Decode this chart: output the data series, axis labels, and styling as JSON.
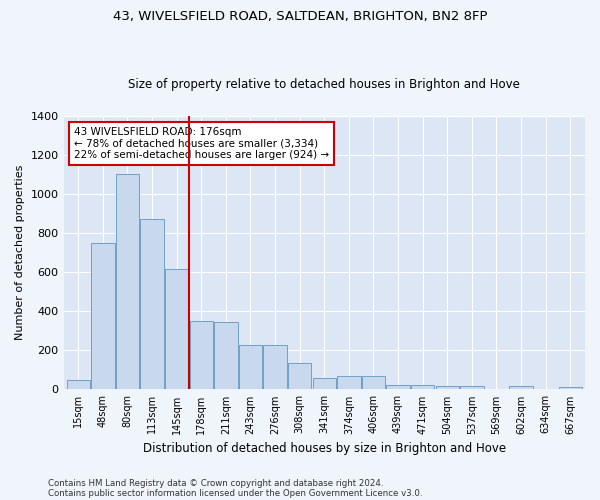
{
  "title1": "43, WIVELSFIELD ROAD, SALTDEAN, BRIGHTON, BN2 8FP",
  "title2": "Size of property relative to detached houses in Brighton and Hove",
  "xlabel": "Distribution of detached houses by size in Brighton and Hove",
  "ylabel": "Number of detached properties",
  "footnote1": "Contains HM Land Registry data © Crown copyright and database right 2024.",
  "footnote2": "Contains public sector information licensed under the Open Government Licence v3.0.",
  "annotation_line1": "43 WIVELSFIELD ROAD: 176sqm",
  "annotation_line2": "← 78% of detached houses are smaller (3,334)",
  "annotation_line3": "22% of semi-detached houses are larger (924) →",
  "bar_color": "#c9d9ed",
  "bar_edge_color": "#6fa0c8",
  "vline_color": "#cc0000",
  "bg_color": "#dce6f5",
  "grid_color": "#ffffff",
  "fig_bg_color": "#f0f4fb",
  "categories": [
    "15sqm",
    "48sqm",
    "80sqm",
    "113sqm",
    "145sqm",
    "178sqm",
    "211sqm",
    "243sqm",
    "276sqm",
    "308sqm",
    "341sqm",
    "374sqm",
    "406sqm",
    "439sqm",
    "471sqm",
    "504sqm",
    "537sqm",
    "569sqm",
    "602sqm",
    "634sqm",
    "667sqm"
  ],
  "values": [
    50,
    750,
    1100,
    870,
    615,
    350,
    345,
    225,
    225,
    135,
    60,
    70,
    70,
    25,
    25,
    20,
    15,
    2,
    15,
    2,
    10
  ],
  "ylim": [
    0,
    1400
  ],
  "yticks": [
    0,
    200,
    400,
    600,
    800,
    1000,
    1200,
    1400
  ],
  "vline_position": 4.5
}
